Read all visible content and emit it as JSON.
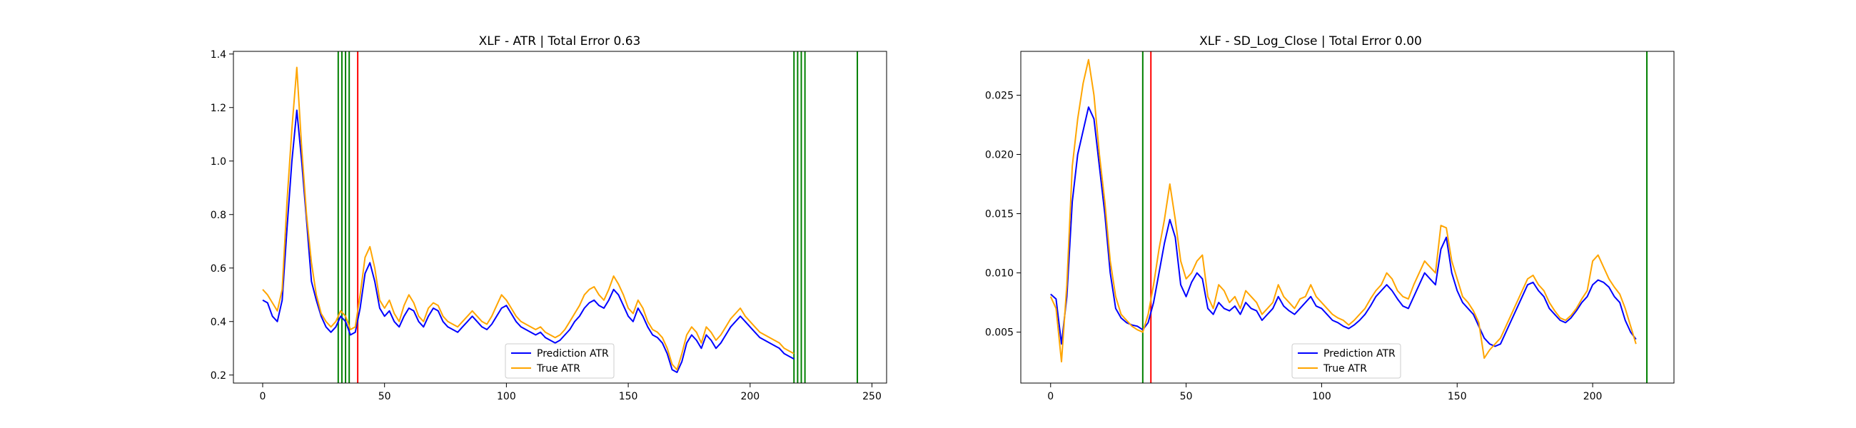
{
  "chart_data": [
    {
      "type": "line",
      "title": "XLF - ATR | Total Error 0.63",
      "xlabel": "",
      "ylabel": "",
      "xlim": [
        -12,
        256
      ],
      "ylim": [
        0.17,
        1.41
      ],
      "xticks": [
        0,
        50,
        100,
        150,
        200,
        250
      ],
      "yticks": [
        0.2,
        0.4,
        0.6,
        0.8,
        1.0,
        1.2,
        1.4
      ],
      "ytick_labels": [
        "0.2",
        "0.4",
        "0.6",
        "0.8",
        "1.0",
        "1.2",
        "1.4"
      ],
      "grid": false,
      "legend_position": "lower center",
      "series": [
        {
          "name": "Prediction ATR",
          "color": "#0000ff",
          "x": [
            0,
            2,
            4,
            6,
            8,
            10,
            12,
            14,
            16,
            18,
            20,
            22,
            24,
            26,
            28,
            30,
            32,
            34,
            36,
            38,
            40,
            42,
            44,
            46,
            48,
            50,
            52,
            54,
            56,
            58,
            60,
            62,
            64,
            66,
            68,
            70,
            72,
            74,
            76,
            78,
            80,
            82,
            84,
            86,
            88,
            90,
            92,
            94,
            96,
            98,
            100,
            102,
            104,
            106,
            108,
            110,
            112,
            114,
            116,
            118,
            120,
            122,
            124,
            126,
            128,
            130,
            132,
            134,
            136,
            138,
            140,
            142,
            144,
            146,
            148,
            150,
            152,
            154,
            156,
            158,
            160,
            162,
            164,
            166,
            168,
            170,
            172,
            174,
            176,
            178,
            180,
            182,
            184,
            186,
            188,
            190,
            192,
            194,
            196,
            198,
            200,
            202,
            204,
            206,
            208,
            210,
            212,
            214,
            216,
            218
          ],
          "values": [
            0.48,
            0.47,
            0.42,
            0.4,
            0.48,
            0.75,
            1.0,
            1.19,
            1.0,
            0.78,
            0.55,
            0.48,
            0.42,
            0.38,
            0.36,
            0.38,
            0.42,
            0.4,
            0.35,
            0.36,
            0.45,
            0.58,
            0.62,
            0.55,
            0.45,
            0.42,
            0.44,
            0.4,
            0.38,
            0.42,
            0.45,
            0.44,
            0.4,
            0.38,
            0.42,
            0.45,
            0.44,
            0.4,
            0.38,
            0.37,
            0.36,
            0.38,
            0.4,
            0.42,
            0.4,
            0.38,
            0.37,
            0.39,
            0.42,
            0.45,
            0.46,
            0.43,
            0.4,
            0.38,
            0.37,
            0.36,
            0.35,
            0.36,
            0.34,
            0.33,
            0.32,
            0.33,
            0.35,
            0.37,
            0.4,
            0.42,
            0.45,
            0.47,
            0.48,
            0.46,
            0.45,
            0.48,
            0.52,
            0.5,
            0.46,
            0.42,
            0.4,
            0.45,
            0.42,
            0.38,
            0.35,
            0.34,
            0.32,
            0.28,
            0.22,
            0.21,
            0.25,
            0.32,
            0.35,
            0.33,
            0.3,
            0.35,
            0.33,
            0.3,
            0.32,
            0.35,
            0.38,
            0.4,
            0.42,
            0.4,
            0.38,
            0.36,
            0.34,
            0.33,
            0.32,
            0.31,
            0.3,
            0.28,
            0.27,
            0.26
          ]
        },
        {
          "name": "True ATR",
          "color": "#ffa500",
          "x": [
            0,
            2,
            4,
            6,
            8,
            10,
            12,
            14,
            16,
            18,
            20,
            22,
            24,
            26,
            28,
            30,
            32,
            34,
            36,
            38,
            40,
            42,
            44,
            46,
            48,
            50,
            52,
            54,
            56,
            58,
            60,
            62,
            64,
            66,
            68,
            70,
            72,
            74,
            76,
            78,
            80,
            82,
            84,
            86,
            88,
            90,
            92,
            94,
            96,
            98,
            100,
            102,
            104,
            106,
            108,
            110,
            112,
            114,
            116,
            118,
            120,
            122,
            124,
            126,
            128,
            130,
            132,
            134,
            136,
            138,
            140,
            142,
            144,
            146,
            148,
            150,
            152,
            154,
            156,
            158,
            160,
            162,
            164,
            166,
            168,
            170,
            172,
            174,
            176,
            178,
            180,
            182,
            184,
            186,
            188,
            190,
            192,
            194,
            196,
            198,
            200,
            202,
            204,
            206,
            208,
            210,
            212,
            214,
            216,
            218
          ],
          "values": [
            0.52,
            0.5,
            0.47,
            0.44,
            0.52,
            0.85,
            1.12,
            1.35,
            1.05,
            0.8,
            0.62,
            0.5,
            0.43,
            0.4,
            0.38,
            0.4,
            0.44,
            0.42,
            0.37,
            0.38,
            0.5,
            0.64,
            0.68,
            0.6,
            0.48,
            0.45,
            0.48,
            0.43,
            0.4,
            0.46,
            0.5,
            0.47,
            0.42,
            0.4,
            0.45,
            0.47,
            0.46,
            0.42,
            0.4,
            0.39,
            0.38,
            0.4,
            0.42,
            0.44,
            0.42,
            0.4,
            0.39,
            0.42,
            0.46,
            0.5,
            0.48,
            0.45,
            0.42,
            0.4,
            0.39,
            0.38,
            0.37,
            0.38,
            0.36,
            0.35,
            0.34,
            0.35,
            0.37,
            0.4,
            0.43,
            0.46,
            0.5,
            0.52,
            0.53,
            0.5,
            0.48,
            0.52,
            0.57,
            0.54,
            0.5,
            0.45,
            0.43,
            0.48,
            0.45,
            0.4,
            0.37,
            0.36,
            0.34,
            0.3,
            0.24,
            0.22,
            0.28,
            0.35,
            0.38,
            0.36,
            0.32,
            0.38,
            0.36,
            0.33,
            0.35,
            0.38,
            0.41,
            0.43,
            0.45,
            0.42,
            0.4,
            0.38,
            0.36,
            0.35,
            0.34,
            0.33,
            0.32,
            0.3,
            0.29,
            0.28
          ]
        }
      ],
      "vlines": [
        {
          "x": 31,
          "color": "#008000"
        },
        {
          "x": 32.5,
          "color": "#008000"
        },
        {
          "x": 34,
          "color": "#008000"
        },
        {
          "x": 35.5,
          "color": "#008000"
        },
        {
          "x": 39,
          "color": "#ff0000"
        },
        {
          "x": 218,
          "color": "#008000"
        },
        {
          "x": 219.5,
          "color": "#008000"
        },
        {
          "x": 221,
          "color": "#008000"
        },
        {
          "x": 222.5,
          "color": "#008000"
        },
        {
          "x": 244,
          "color": "#008000"
        }
      ]
    },
    {
      "type": "line",
      "title": "XLF - SD_Log_Close | Total Error 0.00",
      "xlabel": "",
      "ylabel": "",
      "xlim": [
        -11,
        230
      ],
      "ylim": [
        0.0007,
        0.0287
      ],
      "xticks": [
        0,
        50,
        100,
        150,
        200
      ],
      "yticks": [
        0.005,
        0.01,
        0.015,
        0.02,
        0.025
      ],
      "ytick_labels": [
        "0.005",
        "0.010",
        "0.015",
        "0.020",
        "0.025"
      ],
      "grid": false,
      "legend_position": "lower center",
      "series": [
        {
          "name": "Prediction ATR",
          "color": "#0000ff",
          "x": [
            0,
            2,
            4,
            6,
            8,
            10,
            12,
            14,
            16,
            18,
            20,
            22,
            24,
            26,
            28,
            30,
            32,
            34,
            36,
            38,
            40,
            42,
            44,
            46,
            48,
            50,
            52,
            54,
            56,
            58,
            60,
            62,
            64,
            66,
            68,
            70,
            72,
            74,
            76,
            78,
            80,
            82,
            84,
            86,
            88,
            90,
            92,
            94,
            96,
            98,
            100,
            102,
            104,
            106,
            108,
            110,
            112,
            114,
            116,
            118,
            120,
            122,
            124,
            126,
            128,
            130,
            132,
            134,
            136,
            138,
            140,
            142,
            144,
            146,
            148,
            150,
            152,
            154,
            156,
            158,
            160,
            162,
            164,
            166,
            168,
            170,
            172,
            174,
            176,
            178,
            180,
            182,
            184,
            186,
            188,
            190,
            192,
            194,
            196,
            198,
            200,
            202,
            204,
            206,
            208,
            210,
            212,
            214,
            216
          ],
          "values": [
            0.0082,
            0.0078,
            0.004,
            0.008,
            0.016,
            0.02,
            0.022,
            0.024,
            0.023,
            0.019,
            0.015,
            0.01,
            0.007,
            0.0062,
            0.0058,
            0.0056,
            0.0055,
            0.0052,
            0.0058,
            0.0075,
            0.01,
            0.0125,
            0.0145,
            0.013,
            0.009,
            0.008,
            0.0092,
            0.01,
            0.0095,
            0.007,
            0.0065,
            0.0075,
            0.007,
            0.0068,
            0.0072,
            0.0065,
            0.0075,
            0.007,
            0.0068,
            0.006,
            0.0065,
            0.007,
            0.008,
            0.0072,
            0.0068,
            0.0065,
            0.007,
            0.0075,
            0.008,
            0.0072,
            0.007,
            0.0065,
            0.006,
            0.0058,
            0.0055,
            0.0053,
            0.0056,
            0.006,
            0.0065,
            0.0072,
            0.008,
            0.0085,
            0.009,
            0.0085,
            0.0078,
            0.0072,
            0.007,
            0.008,
            0.009,
            0.01,
            0.0095,
            0.009,
            0.012,
            0.013,
            0.01,
            0.0085,
            0.0075,
            0.007,
            0.0065,
            0.0055,
            0.0045,
            0.004,
            0.0038,
            0.004,
            0.005,
            0.006,
            0.007,
            0.008,
            0.009,
            0.0092,
            0.0085,
            0.008,
            0.007,
            0.0065,
            0.006,
            0.0058,
            0.0062,
            0.0068,
            0.0075,
            0.008,
            0.009,
            0.0094,
            0.0092,
            0.0088,
            0.008,
            0.0075,
            0.006,
            0.005,
            0.0044
          ]
        },
        {
          "name": "True ATR",
          "color": "#ffa500",
          "x": [
            0,
            2,
            4,
            6,
            8,
            10,
            12,
            14,
            16,
            18,
            20,
            22,
            24,
            26,
            28,
            30,
            32,
            34,
            36,
            38,
            40,
            42,
            44,
            46,
            48,
            50,
            52,
            54,
            56,
            58,
            60,
            62,
            64,
            66,
            68,
            70,
            72,
            74,
            76,
            78,
            80,
            82,
            84,
            86,
            88,
            90,
            92,
            94,
            96,
            98,
            100,
            102,
            104,
            106,
            108,
            110,
            112,
            114,
            116,
            118,
            120,
            122,
            124,
            126,
            128,
            130,
            132,
            134,
            136,
            138,
            140,
            142,
            144,
            146,
            148,
            150,
            152,
            154,
            156,
            158,
            160,
            162,
            164,
            166,
            168,
            170,
            172,
            174,
            176,
            178,
            180,
            182,
            184,
            186,
            188,
            190,
            192,
            194,
            196,
            198,
            200,
            202,
            204,
            206,
            208,
            210,
            212,
            214,
            216
          ],
          "values": [
            0.008,
            0.007,
            0.0025,
            0.009,
            0.019,
            0.023,
            0.026,
            0.028,
            0.025,
            0.02,
            0.016,
            0.011,
            0.008,
            0.0065,
            0.006,
            0.0055,
            0.0052,
            0.005,
            0.0065,
            0.009,
            0.012,
            0.0145,
            0.0175,
            0.0145,
            0.011,
            0.0095,
            0.01,
            0.011,
            0.0115,
            0.008,
            0.007,
            0.009,
            0.0085,
            0.0075,
            0.008,
            0.007,
            0.0085,
            0.008,
            0.0075,
            0.0065,
            0.007,
            0.0075,
            0.009,
            0.008,
            0.0075,
            0.007,
            0.0078,
            0.008,
            0.009,
            0.008,
            0.0075,
            0.007,
            0.0065,
            0.0062,
            0.006,
            0.0056,
            0.006,
            0.0065,
            0.007,
            0.0078,
            0.0085,
            0.009,
            0.01,
            0.0095,
            0.0085,
            0.008,
            0.0078,
            0.009,
            0.01,
            0.011,
            0.0105,
            0.01,
            0.014,
            0.0138,
            0.011,
            0.0095,
            0.008,
            0.0075,
            0.0068,
            0.0058,
            0.0028,
            0.0035,
            0.004,
            0.0045,
            0.0055,
            0.0065,
            0.0075,
            0.0085,
            0.0095,
            0.0098,
            0.009,
            0.0085,
            0.0075,
            0.0068,
            0.0062,
            0.006,
            0.0064,
            0.007,
            0.0078,
            0.0085,
            0.011,
            0.0115,
            0.0105,
            0.0095,
            0.0088,
            0.0082,
            0.007,
            0.0055,
            0.004
          ]
        }
      ],
      "vlines": [
        {
          "x": 34,
          "color": "#008000"
        },
        {
          "x": 37,
          "color": "#ff0000"
        },
        {
          "x": 220,
          "color": "#008000"
        }
      ]
    }
  ]
}
